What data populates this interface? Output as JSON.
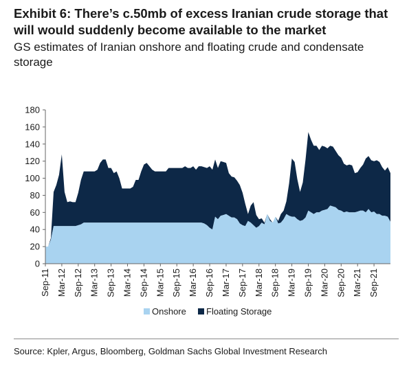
{
  "header": {
    "title": "Exhibit 6: There’s c.50mb of excess Iranian crude storage that will would suddenly become available to the market",
    "subtitle": "GS estimates of Iranian onshore and floating crude and condensate storage"
  },
  "footer": {
    "source": "Source: Kpler, Argus, Bloomberg, Goldman Sachs Global Investment Research"
  },
  "colors": {
    "onshore": "#a9d3f0",
    "floating": "#0d2847",
    "axis": "#666666"
  },
  "chart_data": {
    "type": "area",
    "stacked": true,
    "xlabel": "",
    "ylabel": "",
    "ylim": [
      0,
      180
    ],
    "yticks": [
      0,
      20,
      40,
      60,
      80,
      100,
      120,
      140,
      160,
      180
    ],
    "x_tick_labels": [
      "Sep-11",
      "Mar-12",
      "Sep-12",
      "Mar-13",
      "Sep-13",
      "Mar-14",
      "Sep-14",
      "Mar-15",
      "Sep-15",
      "Mar-16",
      "Sep-16",
      "Mar-17",
      "Sep-17",
      "Mar-18",
      "Sep-18",
      "Mar-19",
      "Sep-19",
      "Mar-20",
      "Sep-20",
      "Mar-21",
      "Sep-21"
    ],
    "x_start": "Sep-11",
    "x_step_months": 1,
    "legend_position": "bottom",
    "series": [
      {
        "name": "Onshore",
        "values": [
          20,
          20,
          28,
          44,
          44,
          44,
          44,
          44,
          44,
          44,
          44,
          44,
          45,
          46,
          48,
          48,
          48,
          48,
          48,
          48,
          48,
          48,
          48,
          48,
          48,
          48,
          48,
          48,
          48,
          48,
          48,
          48,
          48,
          48,
          48,
          48,
          48,
          48,
          48,
          48,
          48,
          48,
          48,
          48,
          48,
          48,
          48,
          48,
          48,
          48,
          48,
          48,
          48,
          48,
          48,
          48,
          48,
          48,
          47,
          45,
          42,
          40,
          55,
          52,
          56,
          57,
          58,
          56,
          54,
          54,
          52,
          47,
          45,
          44,
          50,
          48,
          45,
          42,
          44,
          48,
          46,
          58,
          50,
          48,
          55,
          47,
          48,
          52,
          58,
          56,
          55,
          55,
          52,
          50,
          51,
          54,
          62,
          60,
          58,
          60,
          60,
          62,
          63,
          64,
          68,
          67,
          66,
          63,
          62,
          60,
          61,
          60,
          60,
          60,
          61,
          62,
          62,
          60,
          64,
          60,
          61,
          58,
          58,
          56,
          56,
          55,
          49
        ]
      },
      {
        "name": "Floating Storage",
        "values": [
          0,
          0,
          2,
          40,
          48,
          60,
          84,
          40,
          28,
          29,
          28,
          28,
          38,
          52,
          60,
          60,
          60,
          60,
          60,
          62,
          70,
          74,
          74,
          64,
          64,
          58,
          60,
          52,
          40,
          40,
          40,
          40,
          42,
          50,
          50,
          60,
          68,
          70,
          66,
          62,
          60,
          60,
          60,
          60,
          60,
          64,
          64,
          64,
          64,
          64,
          64,
          66,
          64,
          64,
          66,
          62,
          66,
          66,
          66,
          67,
          72,
          70,
          67,
          60,
          64,
          62,
          60,
          50,
          48,
          47,
          45,
          45,
          38,
          26,
          8,
          20,
          27,
          15,
          8,
          5,
          2,
          0,
          2,
          0,
          0,
          3,
          10,
          10,
          15,
          38,
          68,
          64,
          47,
          34,
          44,
          68,
          92,
          85,
          80,
          78,
          73,
          76,
          74,
          71,
          70,
          70,
          66,
          64,
          62,
          57,
          54,
          56,
          55,
          46,
          46,
          50,
          54,
          63,
          62,
          61,
          59,
          63,
          61,
          57,
          53,
          58,
          57
        ]
      }
    ]
  }
}
